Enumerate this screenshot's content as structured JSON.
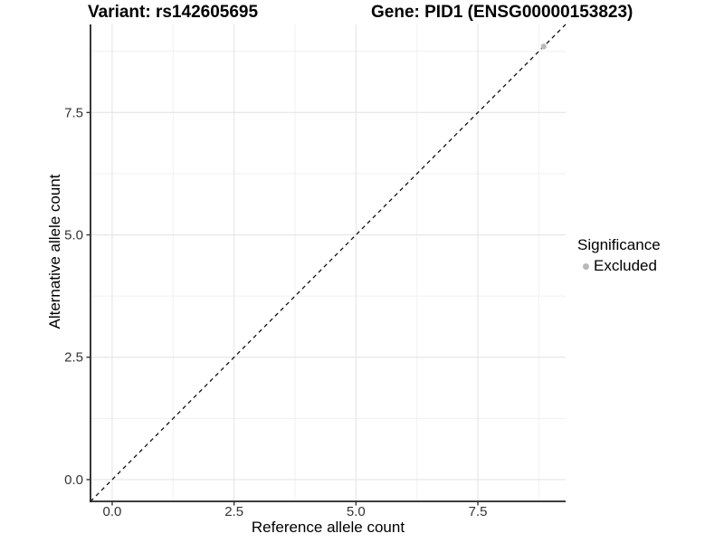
{
  "header": {
    "variant_title": "Variant: rs142605695",
    "gene_title": "Gene: PID1 (ENSG00000153823)"
  },
  "chart_data": {
    "type": "scatter",
    "title_left": "Variant: rs142605695",
    "title_right": "Gene: PID1 (ENSG00000153823)",
    "xlabel": "Reference allele count",
    "ylabel": "Alternative allele count",
    "xlim": [
      -0.445,
      9.3
    ],
    "ylim": [
      -0.445,
      9.3
    ],
    "x_ticks": [
      0.0,
      2.5,
      5.0,
      7.5
    ],
    "y_ticks": [
      0.0,
      2.5,
      5.0,
      7.5
    ],
    "x_tick_labels": [
      "0.0",
      "2.5",
      "5.0",
      "7.5"
    ],
    "y_tick_labels": [
      "0.0",
      "2.5",
      "5.0",
      "7.5"
    ],
    "x_minor_ticks": [
      1.25,
      3.75,
      6.25,
      8.75
    ],
    "y_minor_ticks": [
      1.25,
      3.75,
      6.25,
      8.75
    ],
    "grid": true,
    "identity_line": {
      "style": "dashed",
      "from": -0.445,
      "to": 9.3,
      "color": "#111111"
    },
    "series": [
      {
        "name": "Excluded",
        "color": "#bcbcbc",
        "points": [
          [
            8.85,
            8.85
          ]
        ]
      }
    ],
    "legend": {
      "title": "Significance",
      "position": "right",
      "entries": [
        {
          "label": "Excluded",
          "color": "#b8b8b8"
        }
      ]
    },
    "colors": {
      "background": "#ffffff",
      "axis_line": "#222222",
      "tick_label": "#333333",
      "grid_major": "#e5e5e5",
      "grid_minor": "#f1f1f1"
    }
  }
}
